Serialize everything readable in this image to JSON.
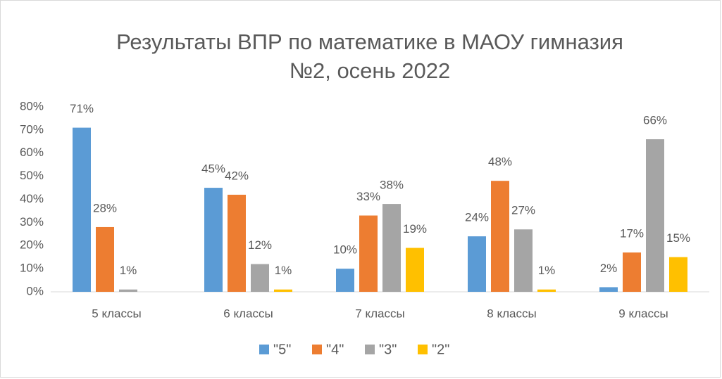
{
  "chart_data": {
    "type": "bar",
    "title_lines": [
      "Результаты ВПР по математике в МАОУ гимназия",
      "№2, осень 2022"
    ],
    "categories": [
      "5 классы",
      "6 классы",
      "7 классы",
      "8 классы",
      "9 классы"
    ],
    "series": [
      {
        "name": "\"5\"",
        "color": "#5b9bd5",
        "values": [
          71,
          45,
          10,
          24,
          2
        ],
        "value_labels": [
          "71%",
          "45%",
          "10%",
          "24%",
          "2%"
        ]
      },
      {
        "name": "\"4\"",
        "color": "#ed7d31",
        "values": [
          28,
          42,
          33,
          48,
          17
        ],
        "value_labels": [
          "28%",
          "42%",
          "33%",
          "48%",
          "17%"
        ]
      },
      {
        "name": "\"3\"",
        "color": "#a5a5a5",
        "values": [
          1,
          12,
          38,
          27,
          66
        ],
        "value_labels": [
          "1%",
          "12%",
          "38%",
          "27%",
          "66%"
        ]
      },
      {
        "name": "\"2\"",
        "color": "#ffc000",
        "values": [
          null,
          1,
          19,
          1,
          15
        ],
        "value_labels": [
          null,
          "1%",
          "19%",
          "1%",
          "15%"
        ]
      }
    ],
    "ylim": [
      0,
      80
    ],
    "yticks": [
      {
        "value": 0,
        "label": "0%"
      },
      {
        "value": 10,
        "label": "10%"
      },
      {
        "value": 20,
        "label": "20%"
      },
      {
        "value": 30,
        "label": "30%"
      },
      {
        "value": 40,
        "label": "40%"
      },
      {
        "value": 50,
        "label": "50%"
      },
      {
        "value": 60,
        "label": "60%"
      },
      {
        "value": 70,
        "label": "70%"
      },
      {
        "value": 80,
        "label": "80%"
      }
    ],
    "grid": false,
    "legend": "bottom"
  }
}
